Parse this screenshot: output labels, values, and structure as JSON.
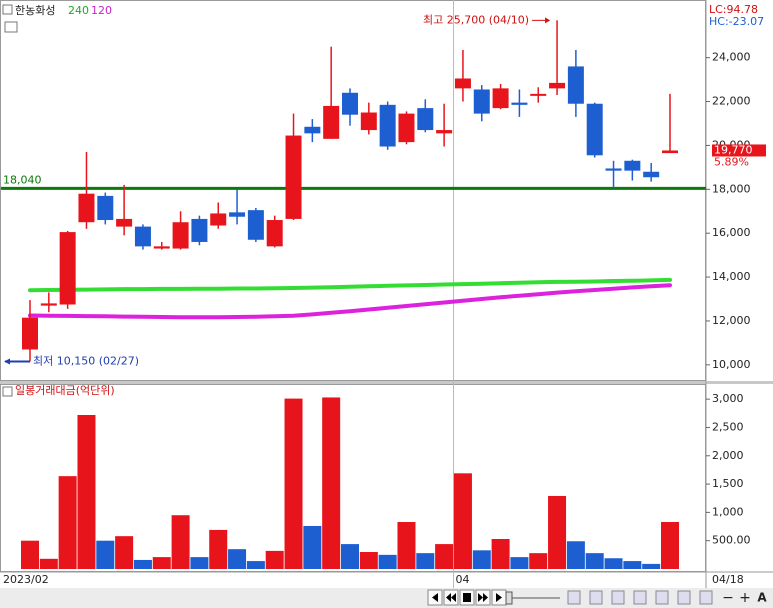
{
  "header": {
    "title": "한농화성",
    "indicators": [
      "LC:94.78",
      "HC:-23.07"
    ]
  },
  "toolbar": [
    "−",
    "+",
    "A"
  ],
  "chart_data": [
    {
      "type": "candlestick",
      "categories": [
        "2023/02",
        null,
        null,
        null,
        null,
        null,
        null,
        null,
        null,
        null,
        null,
        null,
        null,
        null,
        null,
        null,
        null,
        null,
        null,
        null,
        null,
        null,
        null,
        "04",
        null,
        null,
        null,
        null,
        null,
        null,
        null,
        null,
        null,
        null,
        null
      ],
      "current_date": "04/18",
      "up_color": "#e8141b",
      "down_color": "#1d5fd0",
      "open": [
        10700,
        12700,
        12750,
        16500,
        17700,
        16300,
        16300,
        15300,
        15300,
        16650,
        16350,
        16950,
        17050,
        15400,
        16650,
        20850,
        20300,
        22400,
        20700,
        21850,
        20150,
        21700,
        20550,
        22600,
        22550,
        21700,
        21950,
        22300,
        22600,
        23600,
        21900,
        18950,
        19300,
        18800,
        19650
      ],
      "high": [
        12950,
        13300,
        16100,
        19700,
        17850,
        18200,
        16400,
        15600,
        17000,
        16800,
        17400,
        18000,
        17150,
        16800,
        21450,
        21200,
        24500,
        22600,
        21950,
        22000,
        21550,
        22100,
        21900,
        24350,
        22750,
        22800,
        22550,
        22650,
        25700,
        24350,
        21950,
        19300,
        19350,
        19200,
        22350
      ],
      "low": [
        10150,
        12400,
        12550,
        16200,
        16400,
        15900,
        15250,
        15250,
        15250,
        15450,
        16200,
        16400,
        15600,
        15350,
        16600,
        20150,
        20300,
        20900,
        20500,
        19800,
        20050,
        20600,
        19950,
        22000,
        21100,
        21650,
        21300,
        21950,
        22300,
        21300,
        19450,
        18050,
        18400,
        18350,
        19650
      ],
      "close": [
        12150,
        12800,
        16050,
        17800,
        16600,
        16650,
        15400,
        15400,
        16500,
        15600,
        16900,
        16750,
        15700,
        16600,
        20450,
        20550,
        21800,
        21400,
        21500,
        19950,
        21450,
        20700,
        20700,
        23050,
        21450,
        22600,
        21850,
        22350,
        22850,
        21900,
        19550,
        18850,
        18850,
        18550,
        19770
      ],
      "series": [
        {
          "name": "240",
          "color": "#33dd33",
          "values": [
            13400,
            13410,
            13420,
            13430,
            13440,
            13450,
            13450,
            13460,
            13460,
            13470,
            13470,
            13480,
            13480,
            13490,
            13500,
            13520,
            13540,
            13560,
            13580,
            13600,
            13620,
            13640,
            13660,
            13680,
            13700,
            13720,
            13740,
            13760,
            13780,
            13790,
            13800,
            13820,
            13830,
            13850,
            13870
          ]
        },
        {
          "name": "120",
          "color": "#dd22dd",
          "values": [
            12250,
            12240,
            12230,
            12220,
            12210,
            12200,
            12190,
            12180,
            12170,
            12170,
            12170,
            12180,
            12190,
            12210,
            12240,
            12300,
            12370,
            12440,
            12520,
            12600,
            12680,
            12760,
            12840,
            12920,
            13000,
            13080,
            13150,
            13220,
            13290,
            13350,
            13410,
            13470,
            13530,
            13580,
            13630
          ]
        }
      ],
      "hline": {
        "value": 18040,
        "label": "18,040",
        "color": "#0a7a0a"
      },
      "annotations": {
        "high": {
          "value": 25700,
          "label": "최고 25,700 (04/10)"
        },
        "low": {
          "value": 10150,
          "label": "최저 10,150 (02/27)"
        }
      },
      "last_price": {
        "value": 19770,
        "label": "19,770"
      },
      "change_label": "5.89%",
      "ylim": [
        9400,
        26400
      ],
      "yticks": [
        {
          "value": 10000,
          "label": "10,000"
        },
        {
          "value": 12000,
          "label": "12,000"
        },
        {
          "value": 14000,
          "label": "14,000"
        },
        {
          "value": 16000,
          "label": "16,000"
        },
        {
          "value": 18000,
          "label": "18,000"
        },
        {
          "value": 20000,
          "label": "20,000"
        },
        {
          "value": 22000,
          "label": "22,000"
        },
        {
          "value": 24000,
          "label": "24,000"
        }
      ]
    },
    {
      "type": "bar",
      "title": "일봉거래대금(억단위)",
      "values": [
        500,
        180,
        1640,
        2720,
        500,
        580,
        160,
        210,
        950,
        210,
        690,
        350,
        140,
        320,
        3010,
        760,
        3030,
        440,
        300,
        250,
        830,
        280,
        440,
        1690,
        330,
        530,
        210,
        280,
        1290,
        490,
        280,
        190,
        140,
        90,
        830
      ],
      "ylim": [
        0,
        3250
      ],
      "yticks": [
        {
          "value": 500,
          "label": "500.00"
        },
        {
          "value": 1000,
          "label": "1,000"
        },
        {
          "value": 1500,
          "label": "1,500"
        },
        {
          "value": 2000,
          "label": "2,000"
        },
        {
          "value": 2500,
          "label": "2,500"
        },
        {
          "value": 3000,
          "label": "3,000"
        }
      ]
    }
  ]
}
